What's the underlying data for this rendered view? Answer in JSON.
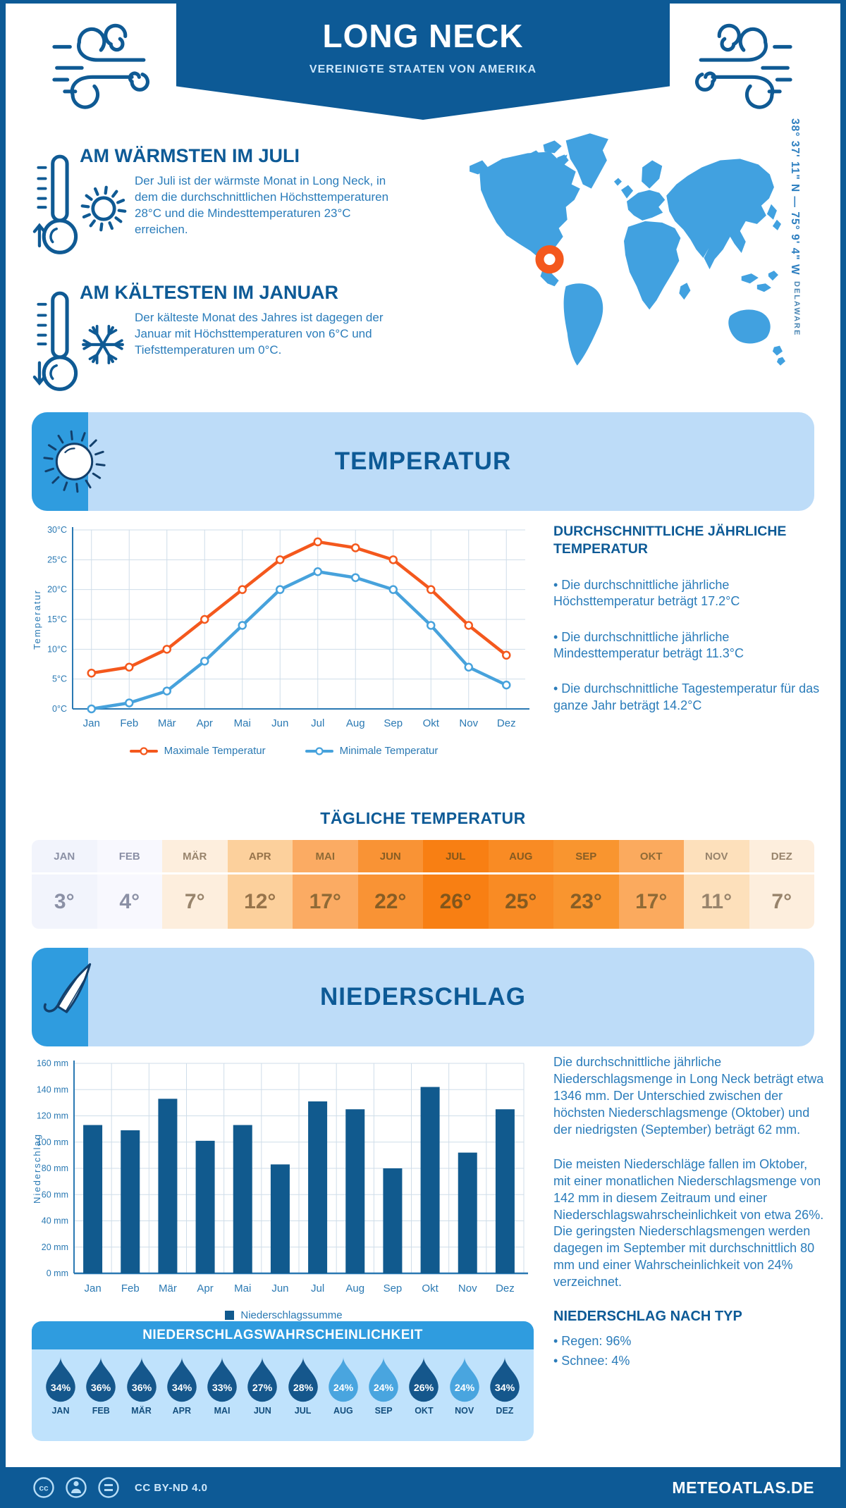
{
  "header": {
    "title": "LONG NECK",
    "subtitle": "VEREINIGTE STAATEN VON AMERIKA"
  },
  "highlights": {
    "warmest": {
      "title": "AM WÄRMSTEN IM JULI",
      "text": "Der Juli ist der wärmste Monat in Long Neck, in dem die durchschnittlichen Höchsttemperaturen 28°C und die Mindesttemperaturen 23°C erreichen."
    },
    "coldest": {
      "title": "AM KÄLTESTEN IM JANUAR",
      "text": "Der kälteste Monat des Jahres ist dagegen der Januar mit Höchsttemperaturen von 6°C und Tiefsttemperaturen um 0°C."
    }
  },
  "map": {
    "coordinates": "38° 37' 11\" N — 75° 9' 4\" W",
    "region": "DELAWARE"
  },
  "sections": {
    "temperature": {
      "banner": "TEMPERATUR",
      "stats_title": "DURCHSCHNITTLICHE JÄHRLICHE TEMPERATUR",
      "stats": [
        "• Die durchschnittliche jährliche Höchsttemperatur beträgt 17.2°C",
        "• Die durchschnittliche jährliche Mindesttemperatur beträgt 11.3°C",
        "• Die durchschnittliche Tagestemperatur für das ganze Jahr beträgt 14.2°C"
      ],
      "daily_title": "TÄGLICHE TEMPERATUR"
    },
    "precipitation": {
      "banner": "NIEDERSCHLAG",
      "paragraphs": [
        "Die durchschnittliche jährliche Niederschlagsmenge in Long Neck beträgt etwa 1346 mm. Der Unterschied zwischen der höchsten Niederschlagsmenge (Oktober) und der niedrigsten (September) beträgt 62 mm.",
        "Die meisten Niederschläge fallen im Oktober, mit einer monatlichen Niederschlagsmenge von 142 mm in diesem Zeitraum und einer Niederschlagswahrscheinlichkeit von etwa 26%. Die geringsten Niederschlagsmengen werden dagegen im September mit durchschnittlich 80 mm und einer Wahrscheinlichkeit von 24% verzeichnet."
      ],
      "type_title": "NIEDERSCHLAG NACH TYP",
      "types": [
        "• Regen: 96%",
        "• Schnee: 4%"
      ],
      "probability_title": "NIEDERSCHLAGSWAHRSCHEINLICHKEIT"
    }
  },
  "chart_data": [
    {
      "type": "line",
      "x": [
        "Jan",
        "Feb",
        "Mär",
        "Apr",
        "Mai",
        "Jun",
        "Jul",
        "Aug",
        "Sep",
        "Okt",
        "Nov",
        "Dez"
      ],
      "ylabel": "Temperatur",
      "ylim": [
        0,
        30
      ],
      "ytick_step": 5,
      "ytick_suffix": "°C",
      "grid": true,
      "legend_position": "bottom",
      "series": [
        {
          "name": "Maximale Temperatur",
          "color": "#f4581d",
          "values": [
            6,
            7,
            10,
            15,
            20,
            25,
            28,
            27,
            25,
            20,
            14,
            9
          ]
        },
        {
          "name": "Minimale Temperatur",
          "color": "#47a2dc",
          "values": [
            0,
            1,
            3,
            8,
            14,
            20,
            23,
            22,
            20,
            14,
            7,
            4
          ]
        }
      ]
    },
    {
      "type": "bar",
      "categories": [
        "Jan",
        "Feb",
        "Mär",
        "Apr",
        "Mai",
        "Jun",
        "Jul",
        "Aug",
        "Sep",
        "Okt",
        "Nov",
        "Dez"
      ],
      "values": [
        113,
        109,
        133,
        101,
        113,
        83,
        131,
        125,
        80,
        142,
        92,
        125
      ],
      "ylabel": "Niederschlag",
      "ylim": [
        0,
        160
      ],
      "ytick_step": 20,
      "ytick_suffix": " mm",
      "legend": [
        "Niederschlagssumme"
      ],
      "bar_color": "#115a8e"
    }
  ],
  "daily_temperature": {
    "months": [
      "JAN",
      "FEB",
      "MÄR",
      "APR",
      "MAI",
      "JUN",
      "JUL",
      "AUG",
      "SEP",
      "OKT",
      "NOV",
      "DEZ"
    ],
    "values": [
      "3°",
      "4°",
      "7°",
      "12°",
      "17°",
      "22°",
      "26°",
      "25°",
      "23°",
      "17°",
      "11°",
      "7°"
    ],
    "cell_colors": [
      "#f2f4fc",
      "#f8f8fe",
      "#fdeedd",
      "#fcd09c",
      "#fbab63",
      "#f99335",
      "#f87f13",
      "#f98b24",
      "#f9952f",
      "#fbaa5e",
      "#fde0bb",
      "#fdeedd"
    ],
    "text_colors": [
      "#8b90a5",
      "#8b90a5",
      "#98846c",
      "#97744b",
      "#8f6a36",
      "#875d24",
      "#82561b",
      "#855a20",
      "#875e26",
      "#8f6a36",
      "#98846c",
      "#98846c"
    ]
  },
  "probability": {
    "months": [
      "JAN",
      "FEB",
      "MÄR",
      "APR",
      "MAI",
      "JUN",
      "JUL",
      "AUG",
      "SEP",
      "OKT",
      "NOV",
      "DEZ"
    ],
    "values": [
      34,
      36,
      36,
      34,
      33,
      27,
      28,
      24,
      24,
      26,
      24,
      34
    ],
    "drop_dark": "#15578c",
    "drop_light": "#49a5df",
    "light_max": 24
  },
  "footer": {
    "license": "CC BY-ND 4.0",
    "site": "METEOATLAS.DE"
  },
  "colors": {
    "frame": "#0d5a96",
    "banner_bg": "#bddcf8",
    "banner_accent": "#2f9cdf",
    "map": "#41a1e0",
    "marker": "#f4581d",
    "text": "#2a7cba",
    "heading": "#0d5a96",
    "axis": "#2a79b3",
    "grid": "#cfdde9",
    "bar": "#115a8e",
    "max_line": "#f4581d",
    "min_line": "#47a2dc",
    "icon": "#0f5a94"
  }
}
